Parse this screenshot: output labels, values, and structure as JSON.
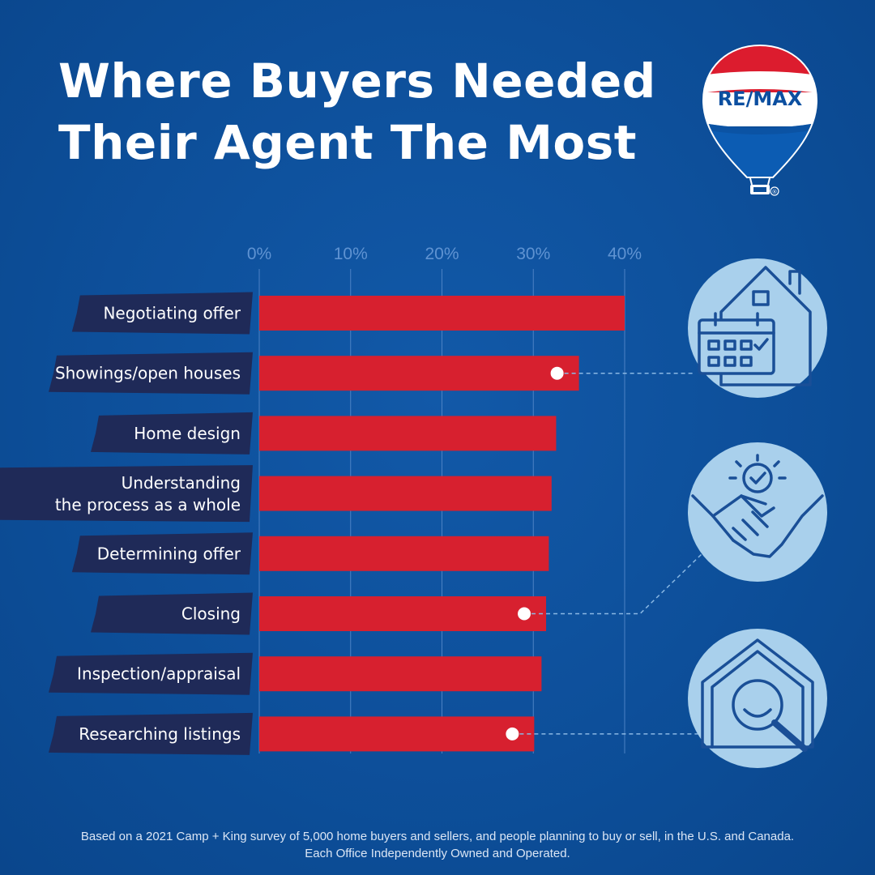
{
  "title_lines": [
    "Where Buyers Needed",
    "Their Agent The Most"
  ],
  "brand": {
    "logo_text": "RE/MAX",
    "registered_mark": "®"
  },
  "colors": {
    "background": "#0d4f9a",
    "bar": "#d7202f",
    "label_band": "#1f2a58",
    "grid": "#4c82c4",
    "tick_text": "#5f93d2",
    "icon_circle": "#a9d0ec",
    "icon_stroke": "#1a4f97"
  },
  "chart_data": {
    "type": "bar",
    "orientation": "horizontal",
    "title": "Where Buyers Needed Their Agent The Most",
    "xlabel": "",
    "ylabel": "",
    "xlim": [
      0,
      40
    ],
    "ticks": [
      0,
      10,
      20,
      30,
      40
    ],
    "tick_suffix": "%",
    "grid": true,
    "categories": [
      "Negotiating offer",
      "Showings/open houses",
      "Home design",
      "Understanding the process as a whole",
      "Determining offer",
      "Closing",
      "Inspection/appraisal",
      "Researching listings"
    ],
    "values": [
      40,
      35,
      32.5,
      32,
      31.7,
      31.4,
      30.9,
      30.1
    ]
  },
  "callouts": [
    {
      "category_index": 1,
      "icon": "house-calendar-icon"
    },
    {
      "category_index": 5,
      "icon": "handshake-icon"
    },
    {
      "category_index": 7,
      "icon": "house-search-icon"
    }
  ],
  "footnote_lines": [
    "Based on a 2021 Camp + King survey of 5,000 home buyers and sellers, and people planning to buy or sell, in the U.S. and Canada.",
    "Each Office Independently Owned and Operated."
  ]
}
